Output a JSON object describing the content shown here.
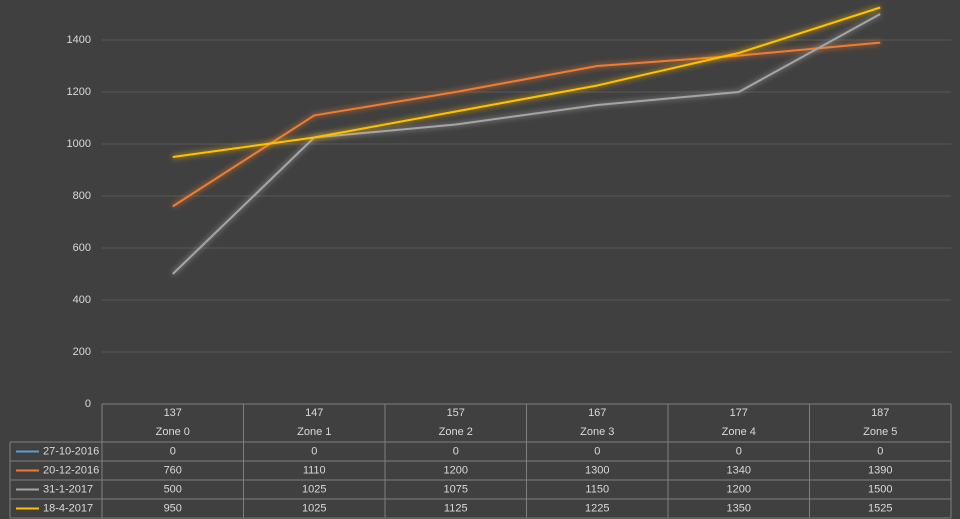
{
  "chart_data": {
    "type": "line",
    "categories": [
      "Zone 0",
      "Zone 1",
      "Zone 2",
      "Zone 3",
      "Zone 4",
      "Zone 5"
    ],
    "category_codes": [
      "137",
      "147",
      "157",
      "167",
      "177",
      "187"
    ],
    "series": [
      {
        "name": "27-10-2016",
        "color": "#5b9bd5",
        "values": [
          0,
          0,
          0,
          0,
          0,
          0
        ]
      },
      {
        "name": "20-12-2016",
        "color": "#ed7d31",
        "values": [
          760,
          1110,
          1200,
          1300,
          1340,
          1390
        ]
      },
      {
        "name": "31-1-2017",
        "color": "#a5a5a5",
        "values": [
          500,
          1025,
          1075,
          1150,
          1200,
          1500
        ]
      },
      {
        "name": "18-4-2017",
        "color": "#ffc000",
        "values": [
          950,
          1025,
          1125,
          1225,
          1350,
          1525
        ]
      }
    ],
    "ylim": [
      0,
      1550
    ],
    "yticks": [
      0,
      200,
      400,
      600,
      800,
      1000,
      1200,
      1400
    ],
    "grid": true
  }
}
